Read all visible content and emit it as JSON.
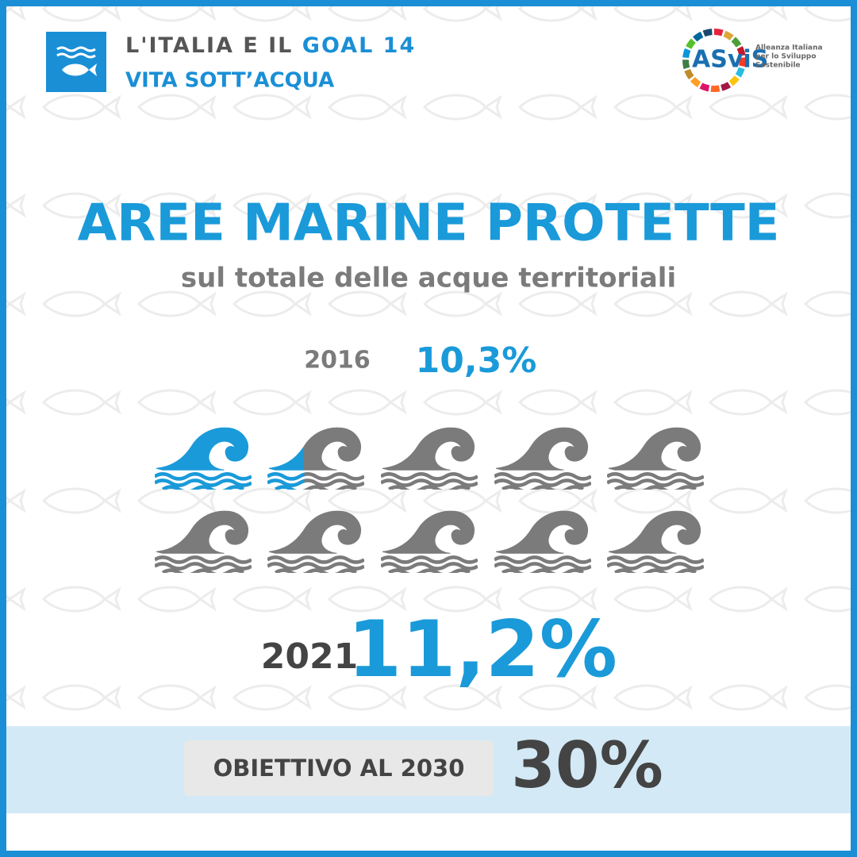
{
  "header": {
    "prefix": "L'ITALIA E IL",
    "goal": "GOAL 14",
    "subtitle": "VITA SOTT’ACQUA"
  },
  "logo": {
    "name": "ASviS",
    "lines": [
      "Alleanza Italiana",
      "per lo Sviluppo",
      "Sostenibile"
    ]
  },
  "title": "AREE MARINE PROTETTE",
  "subtitle": "sul totale delle acque territoriali",
  "earlier": {
    "year": "2016",
    "value": "10,3%"
  },
  "latest": {
    "year": "2021",
    "value": "11,2%"
  },
  "target": {
    "label": "OBIETTIVO AL 2030",
    "value": "30%"
  }
}
